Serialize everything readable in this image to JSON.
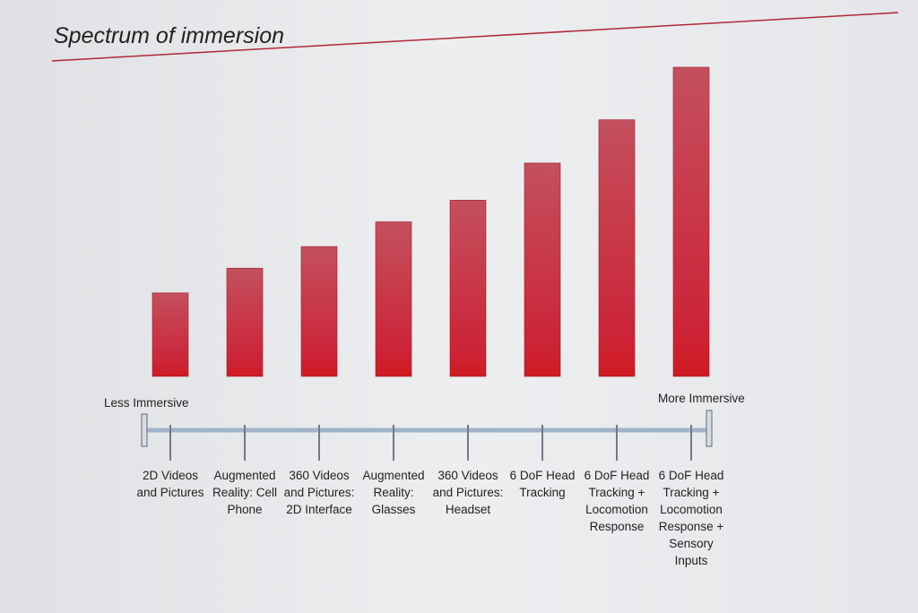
{
  "chart_data": {
    "type": "bar",
    "title": "Spectrum of immersion",
    "categories": [
      "2D Videos and Pictures",
      "Augmented Reality: Cell Phone",
      "360 Videos and Pictures: 2D Interface",
      "Augmented Reality: Glasses",
      "360 Videos and Pictures: Headset",
      "6 DoF Head Tracking",
      "6 DoF Head Tracking + Locomotion Response",
      "6 DoF Head Tracking + Locomotion Response + Sensory Inputs"
    ],
    "values": [
      27,
      35,
      42,
      50,
      57,
      69,
      83,
      100
    ],
    "color": "#c8283a",
    "axis_start_label": "Less Immersive",
    "axis_end_label": "More Immersive"
  }
}
